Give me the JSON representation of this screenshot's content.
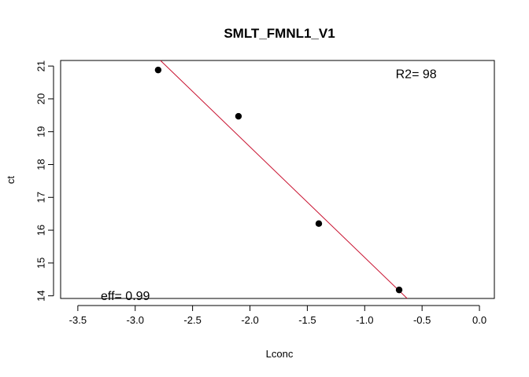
{
  "chart_data": {
    "type": "scatter",
    "title": "SMLT_FMNL1_V1",
    "xlabel": "Lconc",
    "ylabel": "ct",
    "xlim": [
      -3.65,
      0.13
    ],
    "ylim": [
      13.92,
      21.17
    ],
    "xticks": [
      -3.5,
      -3.0,
      -2.5,
      -2.0,
      -1.5,
      -1.0,
      -0.5,
      0.0
    ],
    "xtick_labels": [
      "-3.5",
      "-3.0",
      "-2.5",
      "-2.0",
      "-1.5",
      "-1.0",
      "-0.5",
      "0.0"
    ],
    "yticks": [
      14,
      15,
      16,
      17,
      18,
      19,
      20,
      21
    ],
    "ytick_labels": [
      "14",
      "15",
      "16",
      "17",
      "18",
      "19",
      "20",
      "21"
    ],
    "points": [
      {
        "x": -2.8,
        "y": 20.88
      },
      {
        "x": -2.1,
        "y": 19.47
      },
      {
        "x": -1.4,
        "y": 16.2
      },
      {
        "x": -0.7,
        "y": 14.18
      }
    ],
    "fit_line": {
      "x": [
        -2.78,
        -0.63
      ],
      "y": [
        21.17,
        13.92
      ],
      "color": "#c8102e"
    },
    "annotations": {
      "r2": {
        "text": "R2= 98",
        "x": -0.73,
        "y": 20.78
      },
      "eff": {
        "text": "eff= 0.99",
        "x": -3.3,
        "y": 14.02
      }
    },
    "grid": false,
    "legend": "none"
  }
}
